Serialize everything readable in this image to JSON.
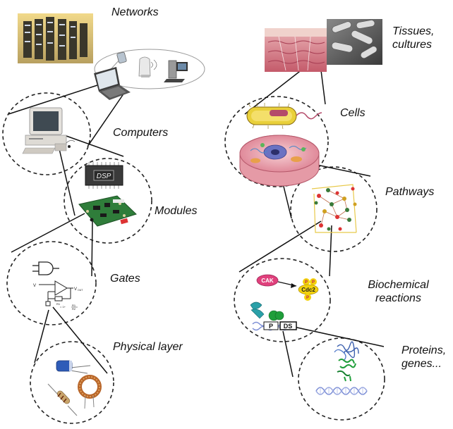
{
  "labels": {
    "networks": "Networks",
    "computers": "Computers",
    "modules": "Modules",
    "gates": "Gates",
    "physical_layer": "Physical layer",
    "tissues_line1": "Tissues,",
    "tissues_line2": "cultures",
    "cells": "Cells",
    "pathways": "Pathways",
    "biochem_line1": "Biochemical",
    "biochem_line2": "reactions",
    "proteins_line1": "Proteins,",
    "proteins_line2": "genes..."
  },
  "chip": {
    "dsp": "DSP"
  },
  "reaction": {
    "cak": "CAK",
    "cdc2": "Cdc2",
    "p_top_left": "P",
    "p_top_right": "P",
    "p_bottom": "P",
    "p_dna": "P",
    "ds": "DS"
  },
  "opamp": {
    "vin": "V",
    "vout": "V",
    "vout_sub": "OUT",
    "r_label": "R1",
    "gain": "= 1+",
    "r_frac_top": "R1",
    "r_frac_bottom": "R2"
  },
  "colors": {
    "dashed_circle": "#222222",
    "connector": "#111111",
    "cak_fill": "#e0407c",
    "cdc2_fill": "#f3d20c",
    "protein_green": "#1f9e3a",
    "protein_blue": "#3b5fae",
    "pcb_green": "#2f7d3a",
    "chip_dark": "#333333",
    "server_rack": "#4d4a3a",
    "tissue_pink": "#d97a88",
    "cell_yellow": "#e9d03a",
    "dna_blue": "#7d8fd6"
  },
  "icons": [
    "server-racks-photo",
    "laptop-icon",
    "pda-icon",
    "router-icon",
    "desktop-tower-icon",
    "desktop-computer-icon",
    "dsp-chip-icon",
    "circuit-board-icon",
    "and-gate-icon",
    "op-amp-schematic-icon",
    "capacitor-icon",
    "resistor-icon",
    "inductor-coil-icon",
    "tissue-photo",
    "bacteria-micrograph",
    "bacterium-icon",
    "eukaryotic-cell-icon",
    "pathway-network-icon",
    "kinase-icon",
    "dna-strand-icon",
    "protein-structure-icon",
    "dna-helix-icon"
  ]
}
